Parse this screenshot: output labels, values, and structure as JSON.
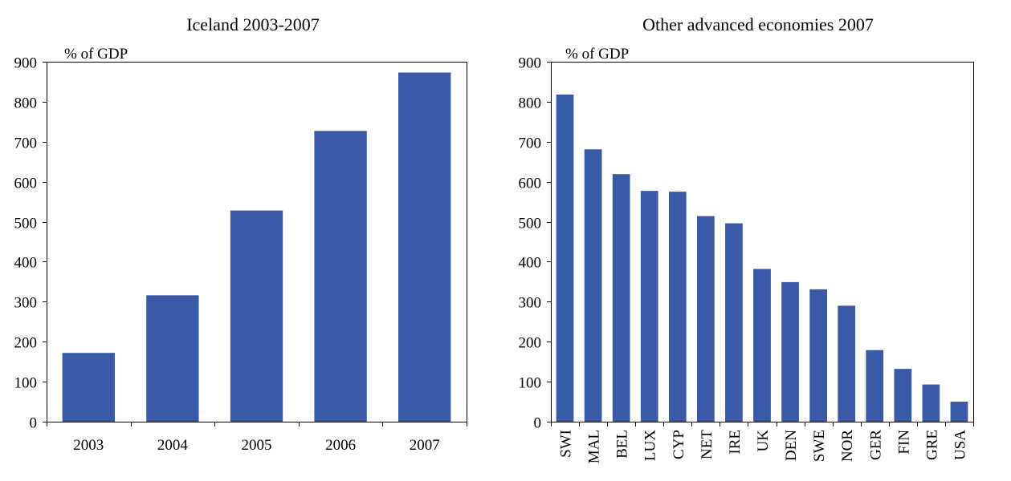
{
  "colors": {
    "bar": "#3a5aa8",
    "axis": "#000000",
    "background": "#ffffff"
  },
  "chart_data": [
    {
      "type": "bar",
      "title": "Iceland 2003-2007",
      "unit_label": "% of GDP",
      "xlabel": "",
      "ylabel": "",
      "categories": [
        "2003",
        "2004",
        "2005",
        "2006",
        "2007"
      ],
      "values": [
        172,
        316,
        528,
        727,
        873
      ],
      "ylim": [
        0,
        900
      ],
      "yticks": [
        0,
        100,
        200,
        300,
        400,
        500,
        600,
        700,
        800,
        900
      ],
      "grid": false,
      "legend": "none",
      "xtick_rotation": "horizontal"
    },
    {
      "type": "bar",
      "title": "Other advanced economies 2007",
      "unit_label": "% of GDP",
      "xlabel": "",
      "ylabel": "",
      "categories": [
        "SWI",
        "MAL",
        "BEL",
        "LUX",
        "CYP",
        "NET",
        "IRE",
        "UK",
        "DEN",
        "SWE",
        "NOR",
        "GER",
        "FIN",
        "GRE",
        "USA"
      ],
      "values": [
        818,
        681,
        619,
        577,
        575,
        514,
        496,
        382,
        349,
        331,
        290,
        179,
        132,
        93,
        50
      ],
      "ylim": [
        0,
        900
      ],
      "yticks": [
        0,
        100,
        200,
        300,
        400,
        500,
        600,
        700,
        800,
        900
      ],
      "grid": false,
      "legend": "none",
      "xtick_rotation": "vertical"
    }
  ]
}
